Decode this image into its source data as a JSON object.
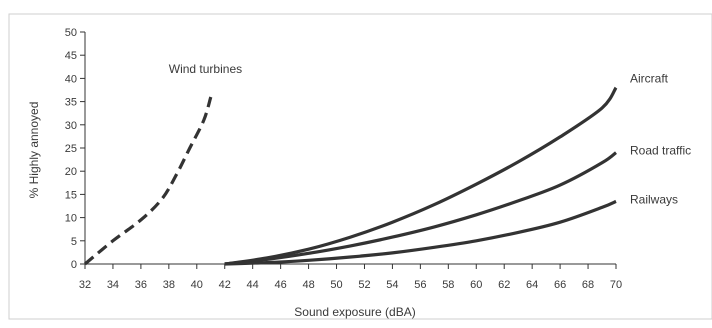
{
  "chart_data": {
    "type": "line",
    "title": "",
    "xlabel": "Sound exposure (dBA)",
    "ylabel": "% Highly annoyed",
    "xlim": [
      32,
      70
    ],
    "ylim": [
      0,
      50
    ],
    "x_ticks": [
      32,
      34,
      36,
      38,
      40,
      42,
      44,
      46,
      48,
      50,
      52,
      54,
      56,
      58,
      60,
      62,
      64,
      66,
      68,
      70
    ],
    "y_ticks": [
      0,
      5,
      10,
      15,
      20,
      25,
      30,
      35,
      40,
      45,
      50
    ],
    "grid": false,
    "legend": "none",
    "series": [
      {
        "name": "Wind turbines",
        "style": "dashed",
        "color": "#333333",
        "x": [
          32,
          34,
          36,
          37.5,
          38.5,
          39.5,
          40.5,
          41
        ],
        "y": [
          0,
          5,
          9.5,
          14,
          19,
          25,
          31,
          36
        ]
      },
      {
        "name": "Aircraft",
        "style": "solid",
        "color": "#333333",
        "x": [
          42,
          45,
          48,
          51,
          54,
          57,
          60,
          63,
          66,
          69,
          70
        ],
        "y": [
          0,
          1.3,
          3.2,
          5.8,
          9.0,
          12.8,
          17.2,
          22.0,
          27.4,
          33.6,
          38
        ]
      },
      {
        "name": "Road traffic",
        "style": "solid",
        "color": "#333333",
        "x": [
          42,
          45,
          48,
          51,
          54,
          57,
          60,
          63,
          66,
          69,
          70
        ],
        "y": [
          0,
          1.0,
          2.3,
          3.9,
          5.8,
          8.0,
          10.6,
          13.6,
          17.0,
          21.8,
          24
        ]
      },
      {
        "name": "Railways",
        "style": "solid",
        "color": "#333333",
        "x": [
          42,
          45,
          48,
          51,
          54,
          57,
          60,
          63,
          66,
          69,
          70
        ],
        "y": [
          0,
          0.3,
          0.8,
          1.5,
          2.4,
          3.6,
          5.0,
          6.8,
          9.0,
          12.2,
          13.5
        ]
      }
    ]
  }
}
